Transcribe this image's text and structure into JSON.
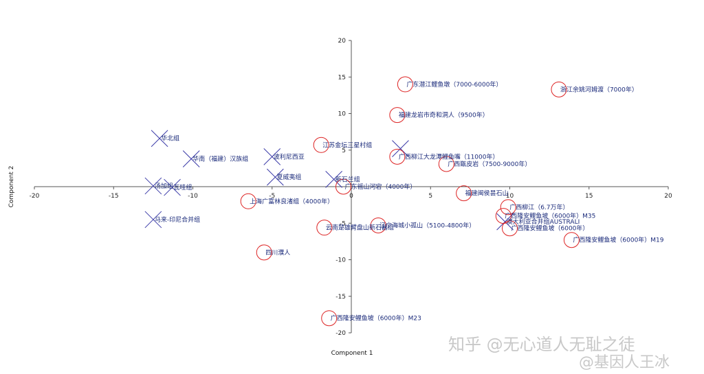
{
  "chart_data": {
    "type": "scatter",
    "xlabel": "Component 1",
    "ylabel": "Component 2",
    "xlim": [
      -20,
      20
    ],
    "ylim": [
      -20,
      20
    ],
    "xticks": [
      -20,
      -15,
      -10,
      -5,
      0,
      5,
      10,
      15,
      20
    ],
    "yticks": [
      20,
      15,
      10,
      5,
      -5,
      -10,
      -15,
      -20
    ],
    "grid": false,
    "colors": {
      "cross": "#3a3aa8",
      "circle": "#dd2222",
      "label": "#1a2a7a",
      "axis": "#555555"
    },
    "cross_points": [
      {
        "x": -12.1,
        "y": 6.6,
        "label": "华北组"
      },
      {
        "x": -10.1,
        "y": 3.8,
        "label": "华南（福建）汉族组"
      },
      {
        "x": -12.5,
        "y": 0.1,
        "label": "汤加组"
      },
      {
        "x": -11.3,
        "y": -0.1,
        "label": "瓦哇组"
      },
      {
        "x": -12.5,
        "y": -4.5,
        "label": "马来-印尼合并组"
      },
      {
        "x": -5,
        "y": 4.1,
        "label": "波利尼西亚"
      },
      {
        "x": -4.8,
        "y": 1.3,
        "label": "夏威夷组"
      },
      {
        "x": -1.1,
        "y": 1,
        "label": "新石兰组"
      },
      {
        "x": 3.1,
        "y": 5.2,
        "label": ""
      },
      {
        "x": 9.7,
        "y": -4.8,
        "label": "澳大利亚合并组AUSTRALI"
      }
    ],
    "circle_points": [
      {
        "x": 3.4,
        "y": 14,
        "label": "广东潜江鲤鱼墩（7000-6000年）"
      },
      {
        "x": 13.1,
        "y": 13.3,
        "label": "浙江余姚河姆渡（7000年）"
      },
      {
        "x": 2.9,
        "y": 9.8,
        "label": "福建龙岩市奇和洞人（9500年）"
      },
      {
        "x": -1.9,
        "y": 5.7,
        "label": "江苏金坛三星村组"
      },
      {
        "x": 2.9,
        "y": 4.1,
        "label": "广西柳江大龙潭鲤鱼嘴（11000年）"
      },
      {
        "x": 6,
        "y": 3.1,
        "label": "广西甑皮岩（7500-9000年）"
      },
      {
        "x": -0.5,
        "y": 0,
        "label": "广东徭山河宕（4000年）"
      },
      {
        "x": 7.1,
        "y": -0.9,
        "label": "福建闽侯昙石山"
      },
      {
        "x": -6.5,
        "y": -2,
        "label": "上海广富林良渚组（4000年）"
      },
      {
        "x": 9.9,
        "y": -2.8,
        "label": "广西柳江（6.7万年）"
      },
      {
        "x": 9.6,
        "y": -4,
        "label": "广西隆安鲤鱼坡（6000年）M35"
      },
      {
        "x": 10,
        "y": -5.7,
        "label": "广西隆安鲤鱼坡（6000年）"
      },
      {
        "x": 13.9,
        "y": -7.3,
        "label": "广西隆安鲤鱼坡（6000年）M19"
      },
      {
        "x": -1.7,
        "y": -5.6,
        "label": "云南楚雄臂盘山新石器组"
      },
      {
        "x": 1.7,
        "y": -5.3,
        "label": "辽宁海城小孤山（5100-4800年）"
      },
      {
        "x": -5.5,
        "y": -9,
        "label": "四川濮人"
      },
      {
        "x": -1.4,
        "y": -18,
        "label": "广西隆安鲤鱼坡（6000年）M23"
      }
    ]
  },
  "watermark": {
    "zhihu": "知乎 @无心道人无耻之徒",
    "weibo": "@基因人王冰"
  }
}
